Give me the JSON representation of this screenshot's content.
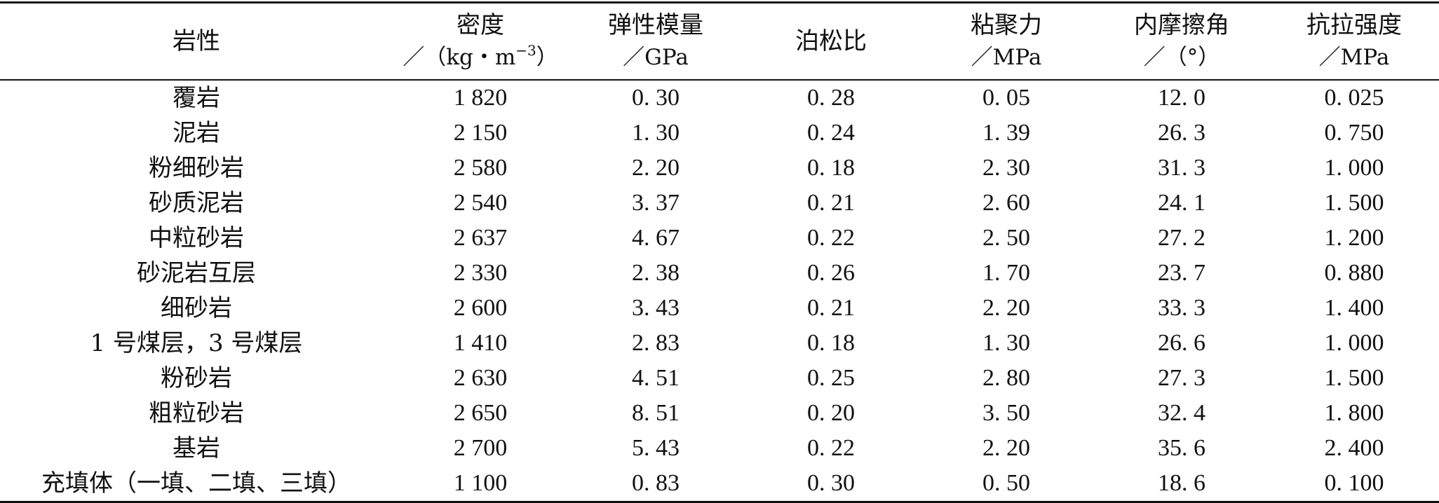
{
  "headers": [
    {
      "line1": "岩性",
      "line2": ""
    },
    {
      "line1": "密度",
      "line2_pre": "／（kg・m",
      "line2_sup": "−3",
      "line2_post": "）"
    },
    {
      "line1": "弹性模量",
      "line2": "／GPa"
    },
    {
      "line1": "泊松比",
      "line2": ""
    },
    {
      "line1": "粘聚力",
      "line2": "／MPa"
    },
    {
      "line1": "内摩擦角",
      "line2": "／（°）"
    },
    {
      "line1": "抗拉强度",
      "line2": "／MPa"
    }
  ],
  "rows": [
    [
      "覆岩",
      "1 820",
      "0. 30",
      "0. 28",
      "0. 05",
      "12. 0",
      "0. 025"
    ],
    [
      "泥岩",
      "2 150",
      "1. 30",
      "0. 24",
      "1. 39",
      "26. 3",
      "0. 750"
    ],
    [
      "粉细砂岩",
      "2 580",
      "2. 20",
      "0. 18",
      "2. 30",
      "31. 3",
      "1. 000"
    ],
    [
      "砂质泥岩",
      "2 540",
      "3. 37",
      "0. 21",
      "2. 60",
      "24. 1",
      "1. 500"
    ],
    [
      "中粒砂岩",
      "2 637",
      "4. 67",
      "0. 22",
      "2. 50",
      "27. 2",
      "1. 200"
    ],
    [
      "砂泥岩互层",
      "2 330",
      "2. 38",
      "0. 26",
      "1. 70",
      "23. 7",
      "0. 880"
    ],
    [
      "细砂岩",
      "2 600",
      "3. 43",
      "0. 21",
      "2. 20",
      "33. 3",
      "1. 400"
    ],
    [
      "1 号煤层，3 号煤层",
      "1 410",
      "2. 83",
      "0. 18",
      "1. 30",
      "26. 6",
      "1. 000"
    ],
    [
      "粉砂岩",
      "2 630",
      "4. 51",
      "0. 25",
      "2. 80",
      "27. 3",
      "1. 500"
    ],
    [
      "粗粒砂岩",
      "2 650",
      "8. 51",
      "0. 20",
      "3. 50",
      "32. 4",
      "1. 800"
    ],
    [
      "基岩",
      "2 700",
      "5. 43",
      "0. 22",
      "2. 20",
      "35. 6",
      "2. 400"
    ],
    [
      "充填体（一填、二填、三填）",
      "1 100",
      "0. 83",
      "0. 30",
      "0. 50",
      "18. 6",
      "0. 100"
    ]
  ]
}
